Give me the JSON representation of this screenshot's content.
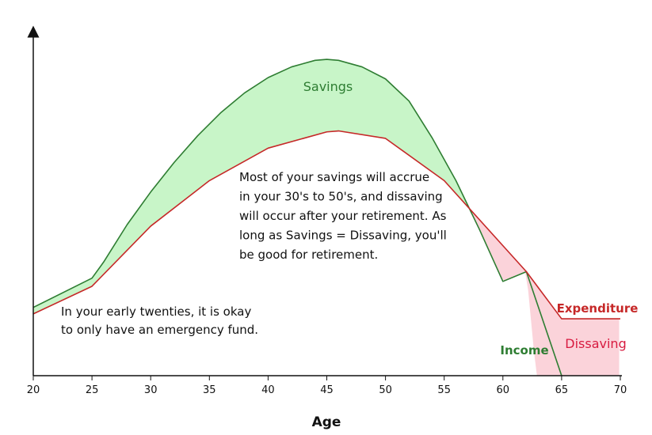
{
  "chart_data": {
    "type": "area",
    "xlabel": "Age",
    "xlim": [
      20,
      70
    ],
    "x_ticks": [
      20,
      25,
      30,
      35,
      40,
      45,
      50,
      55,
      60,
      65,
      70
    ],
    "ylim": [
      0,
      100
    ],
    "series": [
      {
        "name": "Income",
        "color": "#2e7d32",
        "x": [
          20,
          25,
          26,
          28,
          30,
          32,
          34,
          36,
          38,
          40,
          42,
          44,
          45,
          46,
          48,
          50,
          52,
          54,
          56,
          58,
          60,
          62,
          63,
          64,
          65
        ],
        "y": [
          21,
          30,
          35,
          46.5,
          56.5,
          65.6,
          73.8,
          81,
          87,
          91.7,
          95,
          97,
          97.3,
          97,
          95,
          91.3,
          84.5,
          73,
          60,
          45,
          29,
          32,
          -6,
          -1.7,
          0
        ]
      },
      {
        "name": "Expenditure",
        "color": "#c62828",
        "x": [
          20,
          25,
          30,
          35,
          40,
          45,
          46,
          50,
          55,
          60,
          62,
          65,
          70
        ],
        "y": [
          19,
          27.5,
          46,
          60,
          70,
          75,
          75.3,
          73,
          60,
          40,
          32,
          17.5,
          17.5
        ]
      }
    ],
    "regions": [
      {
        "name": "Savings",
        "color": "#c8f5c8"
      },
      {
        "name": "Dissaving",
        "color": "#fbd3da"
      }
    ],
    "annotations": [
      {
        "lines": [
          "In your early twenties, it is okay",
          "to only have an emergency fund."
        ]
      },
      {
        "lines": [
          "Most of your savings will accrue",
          "in your 30's to 50's, and dissaving",
          "will occur after your retirement. As",
          "long as Savings = Dissaving, you'll",
          "be good for retirement."
        ]
      }
    ],
    "labels": {
      "savings": "Savings",
      "dissaving": "Dissaving",
      "income": "Income",
      "expenditure": "Expenditure"
    },
    "colors": {
      "income_line": "#2e7d32",
      "expenditure_line": "#c62828",
      "savings_fill": "#c8f5c8",
      "dissaving_fill": "#fbd3da",
      "savings_text": "#2e7d32",
      "dissaving_text": "#d81b40",
      "axis": "#111111"
    }
  }
}
